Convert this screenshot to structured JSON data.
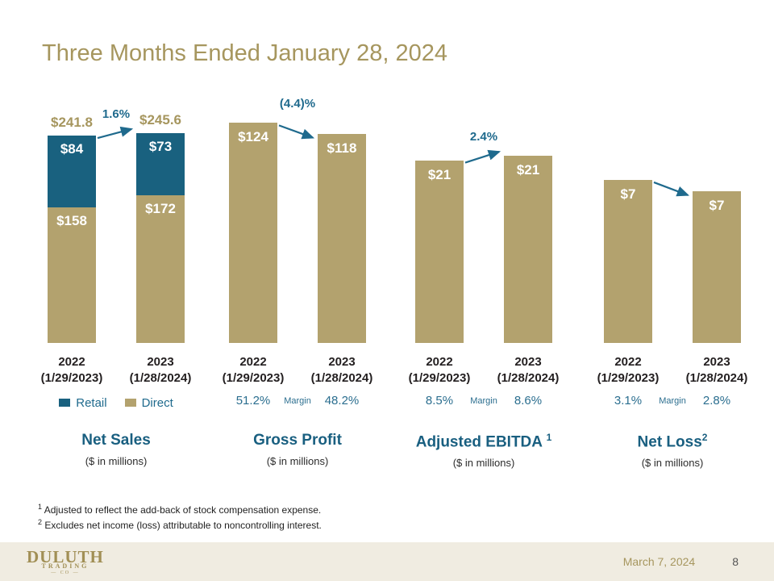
{
  "slide": {
    "title": "Three Months Ended January 28, 2024",
    "date": "March 7, 2024",
    "page": "8"
  },
  "logo": {
    "line1": "DULUTH",
    "line2": "TRADING",
    "line3": "— CO —"
  },
  "footnotes": [
    {
      "sup": "1",
      "text": " Adjusted to reflect the add-back of stock compensation expense."
    },
    {
      "sup": "2",
      "text": " Excludes net income (loss) attributable to noncontrolling interest."
    }
  ],
  "colors": {
    "accent_blue": "#19617F",
    "accent_tan": "#B3A26E",
    "gold_text": "#A6965E",
    "margin_blue": "#2B6E8F",
    "arrow_blue": "#1F6A8D",
    "footer_bg": "#F0ECE1",
    "text_dark": "#231F20"
  },
  "chart_data": [
    {
      "name": "net-sales",
      "type": "stacked-bar",
      "title": "Net Sales",
      "title_sup": "",
      "subtitle": "($ in millions)",
      "categories": [
        [
          "2022",
          "(1/29/2023)"
        ],
        [
          "2023",
          "(1/28/2024)"
        ]
      ],
      "ylim": [
        0,
        292
      ],
      "series": [
        {
          "name": "Retail",
          "color": "#19617F",
          "values": [
            84,
            73
          ],
          "labels": [
            "$84",
            "$73"
          ]
        },
        {
          "name": "Direct",
          "color": "#B3A26E",
          "values": [
            158,
            172
          ],
          "labels": [
            "$158",
            "$172"
          ]
        }
      ],
      "totals": {
        "values": [
          241.8,
          245.6
        ],
        "labels": [
          "$241.8",
          "$245.6"
        ]
      },
      "change": {
        "label": "1.6%",
        "direction": "up"
      },
      "legend": [
        {
          "label": "Retail",
          "color": "#19617F"
        },
        {
          "label": "Direct",
          "color": "#B3A26E"
        }
      ]
    },
    {
      "name": "gross-profit",
      "type": "bar",
      "title": "Gross Profit",
      "title_sup": "",
      "subtitle": "($ in millions)",
      "categories": [
        [
          "2022",
          "(1/29/2023)"
        ],
        [
          "2023",
          "(1/28/2024)"
        ]
      ],
      "ylim": [
        0,
        141
      ],
      "bar_color": "#B3A26E",
      "values": [
        124,
        118
      ],
      "labels": [
        "$124",
        "$118"
      ],
      "change": {
        "label": "(4.4)%",
        "direction": "down"
      },
      "margin": {
        "left": "51.2%",
        "word": "Margin",
        "right": "48.2%"
      }
    },
    {
      "name": "adjusted-ebitda",
      "type": "bar",
      "title": "Adjusted EBITDA ",
      "title_sup": "1",
      "subtitle": "($ in millions)",
      "categories": [
        [
          "2022",
          "(1/29/2023)"
        ],
        [
          "2023",
          "(1/28/2024)"
        ]
      ],
      "ylim": [
        0,
        28.2
      ],
      "bar_color": "#B3A26E",
      "values": [
        20.6,
        21.1
      ],
      "labels": [
        "$21",
        "$21"
      ],
      "change": {
        "label": "2.4%",
        "direction": "up"
      },
      "margin": {
        "left": "8.5%",
        "word": "Margin",
        "right": "8.6%"
      }
    },
    {
      "name": "net-loss",
      "type": "bar",
      "title": "Net Loss",
      "title_sup": "2",
      "subtitle": "($ in millions)",
      "categories": [
        [
          "2022",
          "(1/29/2023)"
        ],
        [
          "2023",
          "(1/28/2024)"
        ]
      ],
      "ylim": [
        0,
        11.2
      ],
      "bar_color": "#B3A26E",
      "values": [
        7.3,
        6.8
      ],
      "labels": [
        "$7",
        "$7"
      ],
      "change": {
        "label": "",
        "direction": "down"
      },
      "margin": {
        "left": "3.1%",
        "word": "Margin",
        "right": "2.8%"
      }
    }
  ]
}
